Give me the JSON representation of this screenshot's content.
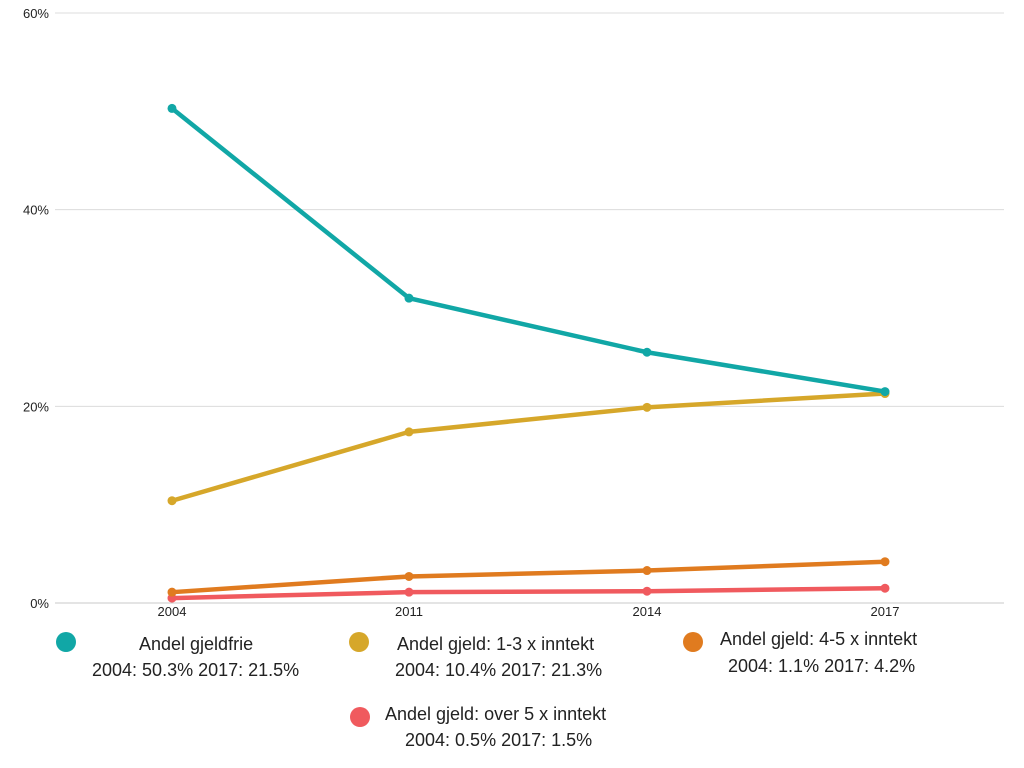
{
  "chart_data": {
    "type": "line",
    "categories": [
      "2004",
      "2011",
      "2014",
      "2017"
    ],
    "y_ticks": [
      "0%",
      "20%",
      "40%",
      "60%"
    ],
    "ylim": [
      0,
      60
    ],
    "grid": true,
    "legend_position": "bottom",
    "series": [
      {
        "name": "Andel gjeldfrie",
        "color": "#11a7a6",
        "values": [
          50.3,
          31.0,
          25.5,
          21.5
        ],
        "summary": "2004: 50.3% 2017: 21.5%"
      },
      {
        "name": "Andel gjeld: 1-3 x inntekt",
        "color": "#d6a72a",
        "values": [
          10.4,
          17.4,
          19.9,
          21.3
        ],
        "summary": "2004: 10.4% 2017: 21.3%"
      },
      {
        "name": "Andel gjeld: 4-5 x inntekt",
        "color": "#e07b1f",
        "values": [
          1.1,
          2.7,
          3.3,
          4.2
        ],
        "summary": "2004: 1.1% 2017: 4.2%"
      },
      {
        "name": "Andel gjeld: over 5 x inntekt",
        "color": "#f05a5e",
        "values": [
          0.5,
          1.1,
          1.2,
          1.5
        ],
        "summary": "2004: 0.5% 2017: 1.5%"
      }
    ]
  }
}
